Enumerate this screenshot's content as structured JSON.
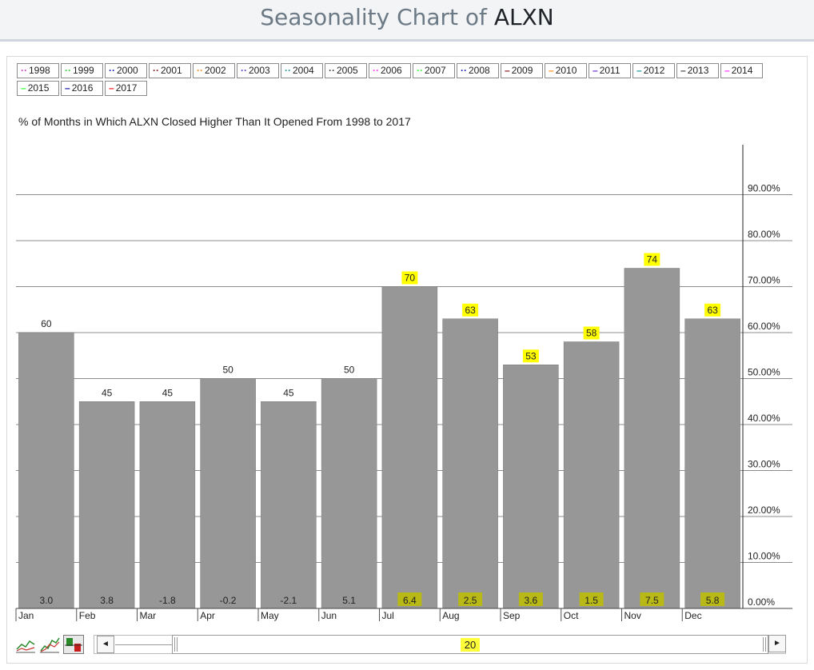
{
  "page": {
    "title_prefix": "Seasonality Chart of",
    "ticker": "ALXN"
  },
  "legend": [
    {
      "label": "1998",
      "color": "#cc33cc",
      "dotted": true
    },
    {
      "label": "1999",
      "color": "#33cc33",
      "dotted": true
    },
    {
      "label": "2000",
      "color": "#1a1aa6",
      "dotted": true
    },
    {
      "label": "2001",
      "color": "#8b1a1a",
      "dotted": true
    },
    {
      "label": "2002",
      "color": "#ff8c1a",
      "dotted": true
    },
    {
      "label": "2003",
      "color": "#6633cc",
      "dotted": true
    },
    {
      "label": "2004",
      "color": "#1a9999",
      "dotted": true
    },
    {
      "label": "2005",
      "color": "#444444",
      "dotted": true
    },
    {
      "label": "2006",
      "color": "#ff33ff",
      "dotted": true
    },
    {
      "label": "2007",
      "color": "#33ff33",
      "dotted": true
    },
    {
      "label": "2008",
      "color": "#1a1aa6",
      "dotted": true
    },
    {
      "label": "2009",
      "color": "#8b1a1a",
      "dotted": false
    },
    {
      "label": "2010",
      "color": "#ff8c1a",
      "dotted": false
    },
    {
      "label": "2011",
      "color": "#6633cc",
      "dotted": false
    },
    {
      "label": "2012",
      "color": "#1a9999",
      "dotted": false
    },
    {
      "label": "2013",
      "color": "#444444",
      "dotted": false
    },
    {
      "label": "2014",
      "color": "#ff33ff",
      "dotted": false
    },
    {
      "label": "2015",
      "color": "#33ff33",
      "dotted": false
    },
    {
      "label": "2016",
      "color": "#1a1aa6",
      "dotted": false
    },
    {
      "label": "2017",
      "color": "#ff1a1a",
      "dotted": false
    }
  ],
  "chart_data": {
    "type": "bar",
    "title": "% of Months in Which ALXN Closed Higher Than It Opened From 1998 to 2017",
    "categories": [
      "Jan",
      "Feb",
      "Mar",
      "Apr",
      "May",
      "Jun",
      "Jul",
      "Aug",
      "Sep",
      "Oct",
      "Nov",
      "Dec"
    ],
    "values": [
      60,
      45,
      45,
      50,
      45,
      50,
      70,
      63,
      53,
      58,
      74,
      63
    ],
    "value_labels": [
      "60",
      "45",
      "45",
      "50",
      "45",
      "50",
      "70",
      "63",
      "53",
      "58",
      "74",
      "63"
    ],
    "bottom_labels": [
      "3.0",
      "3.8",
      "-1.8",
      "-0.2",
      "-2.1",
      "5.1",
      "6.4",
      "2.5",
      "3.6",
      "1.5",
      "7.5",
      "5.8"
    ],
    "highlighted_value_labels": [
      "Jul",
      "Aug",
      "Sep",
      "Oct",
      "Nov",
      "Dec"
    ],
    "highlighted_bottom_labels": [
      "Jul",
      "Aug",
      "Sep",
      "Oct",
      "Nov",
      "Dec"
    ],
    "y_ticks": [
      "0.00%",
      "10.00%",
      "20.00%",
      "30.00%",
      "40.00%",
      "50.00%",
      "60.00%",
      "70.00%",
      "80.00%",
      "90.00%"
    ],
    "ylim": [
      0,
      100
    ],
    "grid": true,
    "legend": "top",
    "bar_color": "#979797",
    "highlight_color": "#ffff00"
  },
  "scroller": {
    "value": "20",
    "left_arrow": "◄",
    "right_arrow": "►"
  },
  "view_icons": [
    "line-chart-icon",
    "multi-line-chart-icon",
    "bar-chart-icon"
  ]
}
